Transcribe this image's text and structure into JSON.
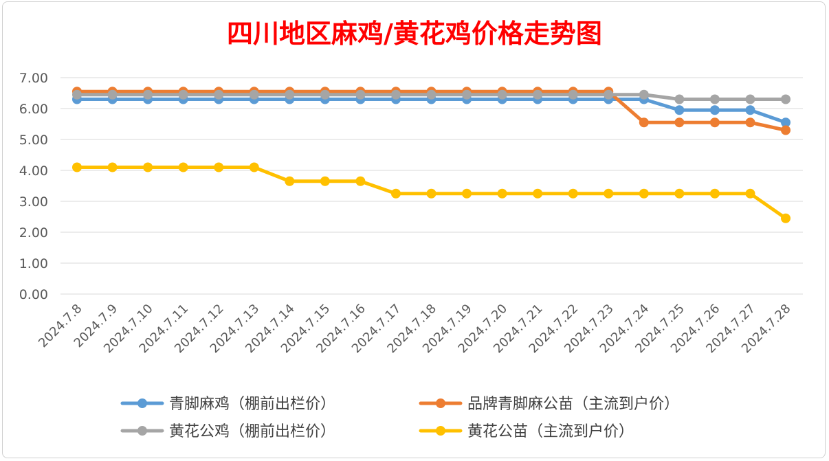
{
  "chart_data": {
    "type": "line",
    "title": "四川地区麻鸡/黄花鸡价格走势图",
    "xlabel": "",
    "ylabel": "",
    "ylim": [
      0,
      7
    ],
    "yticks": [
      "0.00",
      "1.00",
      "2.00",
      "3.00",
      "4.00",
      "5.00",
      "6.00",
      "7.00"
    ],
    "grid": true,
    "legend_position": "bottom",
    "categories": [
      "2024.7.8",
      "2024.7.9",
      "2024.7.10",
      "2024.7.11",
      "2024.7.12",
      "2024.7.13",
      "2024.7.14",
      "2024.7.15",
      "2024.7.16",
      "2024.7.17",
      "2024.7.18",
      "2024.7.19",
      "2024.7.20",
      "2024.7.21",
      "2024.7.22",
      "2024.7.23",
      "2024.7.24",
      "2024.7.25",
      "2024.7.26",
      "2024.7.27",
      "2024.7.28"
    ],
    "series": [
      {
        "name": "青脚麻鸡（棚前出栏价）",
        "color": "#5b9bd5",
        "values": [
          6.3,
          6.3,
          6.3,
          6.3,
          6.3,
          6.3,
          6.3,
          6.3,
          6.3,
          6.3,
          6.3,
          6.3,
          6.3,
          6.3,
          6.3,
          6.3,
          6.3,
          5.95,
          5.95,
          5.95,
          5.55
        ]
      },
      {
        "name": "品牌青脚麻公苗（主流到户价）",
        "color": "#ed7d31",
        "values": [
          6.55,
          6.55,
          6.55,
          6.55,
          6.55,
          6.55,
          6.55,
          6.55,
          6.55,
          6.55,
          6.55,
          6.55,
          6.55,
          6.55,
          6.55,
          6.55,
          5.55,
          5.55,
          5.55,
          5.55,
          5.3
        ]
      },
      {
        "name": "黄花公鸡（棚前出栏价）",
        "color": "#a5a5a5",
        "values": [
          6.45,
          6.45,
          6.45,
          6.45,
          6.45,
          6.45,
          6.45,
          6.45,
          6.45,
          6.45,
          6.45,
          6.45,
          6.45,
          6.45,
          6.45,
          6.45,
          6.45,
          6.3,
          6.3,
          6.3,
          6.3
        ]
      },
      {
        "name": "黄花公苗（主流到户价）",
        "color": "#ffc000",
        "values": [
          4.1,
          4.1,
          4.1,
          4.1,
          4.1,
          4.1,
          3.65,
          3.65,
          3.65,
          3.25,
          3.25,
          3.25,
          3.25,
          3.25,
          3.25,
          3.25,
          3.25,
          3.25,
          3.25,
          3.25,
          2.45
        ]
      }
    ]
  }
}
